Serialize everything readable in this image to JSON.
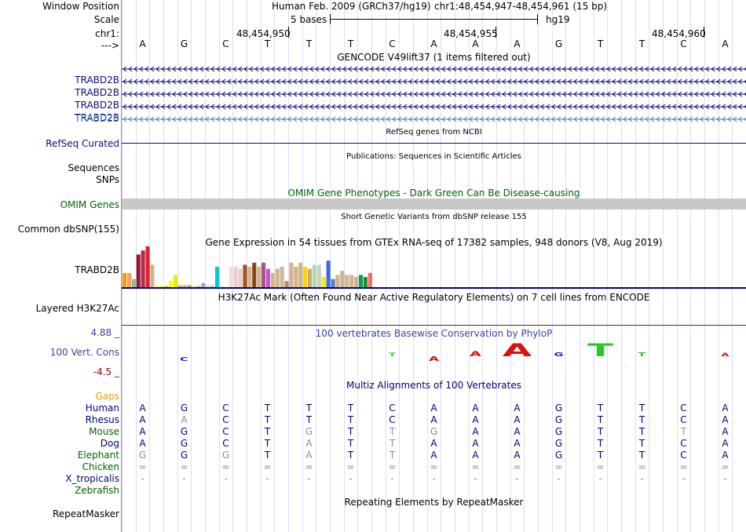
{
  "header": {
    "window_position_label": "Window Position",
    "scale_label": "Scale",
    "chr_label": "chr1:",
    "arrow_label": "--->",
    "assembly": "Human Feb. 2009 (GRCh37/hg19)",
    "position": "chr1:48,454,947-48,454,961 (15 bp)",
    "scale_text": "5 bases",
    "db": "hg19",
    "ticks": [
      "48,454,950",
      "48,454,955",
      "48,454,960"
    ]
  },
  "bases": [
    "A",
    "G",
    "C",
    "T",
    "T",
    "T",
    "C",
    "A",
    "A",
    "A",
    "G",
    "T",
    "T",
    "C",
    "A"
  ],
  "gencode": {
    "title": "GENCODE V49lift37 (1 items filtered out)",
    "labels": [
      "TRABD2B",
      "TRABD2B",
      "TRABD2B",
      "TRABD2B",
      "TRABD2B"
    ]
  },
  "refseq": {
    "title": "RefSeq genes from NCBI",
    "label": "RefSeq Curated"
  },
  "publications": {
    "title": "Publications: Sequences in Scientific Articles",
    "seq_label": "Sequences",
    "snp_label": "SNPs"
  },
  "omim": {
    "title": "OMIM Gene Phenotypes - Dark Green Can Be Disease-causing",
    "label": "OMIM Genes"
  },
  "dbsnp": {
    "title": "Short Genetic Variants from dbSNP release 155",
    "label": "Common dbSNP(155)"
  },
  "gtex": {
    "title": "Gene Expression in 54 tissues from GTEx RNA-seq of 17382 samples, 948 donors (V8, Aug 2019)",
    "label": "TRABD2B",
    "values": [
      0.35,
      0.35,
      0.2,
      0.8,
      0.9,
      1.0,
      0.55,
      0.05,
      0.02,
      0.03,
      0.15,
      0.3,
      0.05,
      0.05,
      0.05,
      0.05,
      0.03,
      0.1,
      0.05,
      0.05,
      0.5,
      0.05,
      0.05,
      0.5,
      0.5,
      0.45,
      0.55,
      0.5,
      0.6,
      0.5,
      0.6,
      0.45,
      0.35,
      0.45,
      0.5,
      0.15,
      0.6,
      0.5,
      0.6,
      0.5,
      0.45,
      0.55,
      0.55,
      0.25,
      0.65,
      0.2,
      0.3,
      0.4,
      0.3,
      0.3,
      0.25,
      0.3,
      0.25,
      0.35
    ],
    "colors": [
      "#ff9900",
      "#f4a460",
      "#8fbc8f",
      "#9b1a2f",
      "#b22a52",
      "#e0202a",
      "#d2b48c",
      "#ffff66",
      "#ffd700",
      "#cdcd00",
      "#ffff00",
      "#eeee00",
      "#d2b48c",
      "#d2b48c",
      "#bb9977",
      "#eee8aa",
      "#cdaa7d",
      "#aaaaaa",
      "#dddddd",
      "#cccccc",
      "#00ced1",
      "#eeeeee",
      "#ffffcc",
      "#eedddd",
      "#eecccc",
      "#e8cfc5",
      "#a0522d",
      "#d2b48c",
      "#8b4513",
      "#d2b48c",
      "#b05080",
      "#ba55d3",
      "#d2b48c",
      "#d2b48c",
      "#cdb79e",
      "#bb8866",
      "#d2b48c",
      "#d2b48c",
      "#d2b48c",
      "#ffd700",
      "#cdaa7d",
      "#aaddaa",
      "#cccccc",
      "#eeee00",
      "#4169e1",
      "#5577cc",
      "#d2b48c",
      "#d2b48c",
      "#cdb79e",
      "#d2b48c",
      "#d2b48c",
      "#00a060",
      "#228b22",
      "#ff6666"
    ]
  },
  "h3k27ac": {
    "title": "H3K27Ac Mark (Often Found Near Active Regulatory Elements) on 7 cell lines from ENCODE",
    "label": "Layered H3K27Ac"
  },
  "phylop": {
    "title": "100 vertebrates Basewise Conservation by PhyloP",
    "label": "100 Vert. Cons",
    "ymax": "4.88 _",
    "ymin": "-4.5 _"
  },
  "multiz": {
    "title": "Multiz Alignments of 100 Vertebrates",
    "rows": [
      {
        "name": "Gaps",
        "color": "#e6a000",
        "cells": [
          "",
          "",
          "",
          "",
          "",
          "",
          "",
          "",
          "",
          "",
          "",
          "",
          "",
          "",
          ""
        ]
      },
      {
        "name": "Human",
        "color": "#000080",
        "cells": [
          "A",
          "G",
          "C",
          "T",
          "T",
          "T",
          "C",
          "A",
          "A",
          "A",
          "G",
          "T",
          "T",
          "C",
          "A"
        ]
      },
      {
        "name": "Rhesus",
        "color": "#000080",
        "cells": [
          "A",
          "A",
          "C",
          "T",
          "T",
          "T",
          "C",
          "A",
          "A",
          "A",
          "G",
          "T",
          "T",
          "C",
          "A"
        ]
      },
      {
        "name": "Mouse",
        "color": "#006400",
        "cells": [
          "A",
          "G",
          "C",
          "T",
          "G",
          "T",
          "T",
          "G",
          "A",
          "A",
          "G",
          "T",
          "T",
          "T",
          "A"
        ]
      },
      {
        "name": "Dog",
        "color": "#000080",
        "cells": [
          "A",
          "G",
          "C",
          "T",
          "A",
          "T",
          "T",
          "A",
          "A",
          "A",
          "G",
          "T",
          "T",
          "C",
          "A"
        ]
      },
      {
        "name": "Elephant",
        "color": "#006400",
        "cells": [
          "G",
          "G",
          "G",
          "T",
          "A",
          "T",
          "T",
          "A",
          "A",
          "A",
          "G",
          "T",
          "T",
          "C",
          "A"
        ]
      },
      {
        "name": "Chicken",
        "color": "#006400",
        "cells": [
          "=",
          "=",
          "=",
          "=",
          "=",
          "=",
          "=",
          "=",
          "=",
          "=",
          "=",
          "=",
          "=",
          "=",
          "="
        ]
      },
      {
        "name": "X_tropicalis",
        "color": "#000080",
        "cells": [
          "-",
          "-",
          "-",
          "-",
          "-",
          "-",
          "-",
          "-",
          "-",
          "-",
          "-",
          "-",
          "-",
          "-",
          "-"
        ]
      },
      {
        "name": "Zebrafish",
        "color": "#006400",
        "cells": [
          "",
          "",
          "",
          "",
          "",
          "",
          "",
          "",
          "",
          "",
          "",
          "",
          "",
          "",
          ""
        ]
      }
    ]
  },
  "repeatmasker": {
    "title": "Repeating Elements by RepeatMasker",
    "label": "RepeatMasker"
  },
  "colors": {
    "navy": "#000080",
    "gencode": "#0c0c78",
    "gencode_alt": "#4a7fb0",
    "omim": "#006400",
    "omim_bar": "#c8c8c8",
    "phylop_title": "#3f3f9f",
    "phylop_min": "#990000"
  }
}
